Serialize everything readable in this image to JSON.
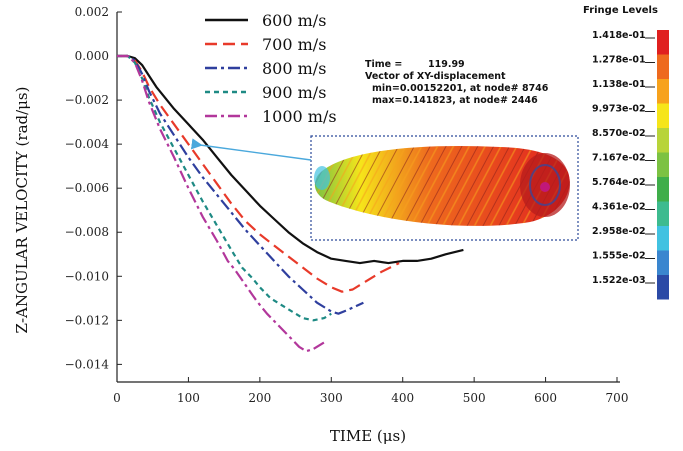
{
  "chart_data": {
    "type": "line",
    "xlabel": "TIME (μs)",
    "ylabel": "Z-ANGULAR VELOCITY (rad/μs)",
    "xlim": [
      0,
      700
    ],
    "ylim": [
      -0.0148,
      0.002
    ],
    "x_ticks": [
      0,
      100,
      200,
      300,
      400,
      500,
      600,
      700
    ],
    "y_ticks": [
      0.002,
      0.0,
      -0.002,
      -0.004,
      -0.006,
      -0.008,
      -0.01,
      -0.012,
      -0.014
    ],
    "x_tick_labels": [
      "0",
      "100",
      "200",
      "300",
      "400",
      "500",
      "600",
      "700"
    ],
    "y_tick_labels": [
      "0.002",
      "0.000",
      "−0.002",
      "−0.004",
      "−0.006",
      "−0.008",
      "−0.010",
      "−0.012",
      "−0.014"
    ],
    "grid": false,
    "legend_position": "top-left",
    "series": [
      {
        "name": "600 m/s",
        "color": "#111111",
        "dash": "solid",
        "points": [
          [
            0,
            0
          ],
          [
            15,
            0
          ],
          [
            25,
            -0.0001
          ],
          [
            35,
            -0.0004
          ],
          [
            45,
            -0.0009
          ],
          [
            55,
            -0.0014
          ],
          [
            65,
            -0.0018
          ],
          [
            80,
            -0.0024
          ],
          [
            100,
            -0.0031
          ],
          [
            120,
            -0.0038
          ],
          [
            140,
            -0.0046
          ],
          [
            160,
            -0.0054
          ],
          [
            180,
            -0.0061
          ],
          [
            200,
            -0.0068
          ],
          [
            220,
            -0.0074
          ],
          [
            240,
            -0.008
          ],
          [
            260,
            -0.0085
          ],
          [
            280,
            -0.0089
          ],
          [
            300,
            -0.0092
          ],
          [
            320,
            -0.0093
          ],
          [
            340,
            -0.0094
          ],
          [
            360,
            -0.0093
          ],
          [
            380,
            -0.0094
          ],
          [
            400,
            -0.0093
          ],
          [
            420,
            -0.0093
          ],
          [
            440,
            -0.0092
          ],
          [
            460,
            -0.009
          ],
          [
            485,
            -0.0088
          ]
        ]
      },
      {
        "name": "700 m/s",
        "color": "#e83a2a",
        "dash": "dashed",
        "points": [
          [
            0,
            0
          ],
          [
            15,
            0
          ],
          [
            25,
            -0.0002
          ],
          [
            35,
            -0.0007
          ],
          [
            45,
            -0.0014
          ],
          [
            60,
            -0.0022
          ],
          [
            80,
            -0.0031
          ],
          [
            100,
            -0.004
          ],
          [
            120,
            -0.0049
          ],
          [
            140,
            -0.0058
          ],
          [
            160,
            -0.0067
          ],
          [
            180,
            -0.0075
          ],
          [
            200,
            -0.0081
          ],
          [
            220,
            -0.0086
          ],
          [
            240,
            -0.0091
          ],
          [
            260,
            -0.0096
          ],
          [
            280,
            -0.0101
          ],
          [
            300,
            -0.0105
          ],
          [
            315,
            -0.0107
          ],
          [
            330,
            -0.0106
          ],
          [
            350,
            -0.0102
          ],
          [
            370,
            -0.0098
          ],
          [
            395,
            -0.0094
          ]
        ]
      },
      {
        "name": "800 m/s",
        "color": "#2f3f9e",
        "dash": "dashdot",
        "points": [
          [
            0,
            0
          ],
          [
            15,
            0
          ],
          [
            25,
            -0.0002
          ],
          [
            35,
            -0.0008
          ],
          [
            45,
            -0.0016
          ],
          [
            60,
            -0.0026
          ],
          [
            80,
            -0.0036
          ],
          [
            100,
            -0.0046
          ],
          [
            120,
            -0.0055
          ],
          [
            140,
            -0.0063
          ],
          [
            160,
            -0.0071
          ],
          [
            180,
            -0.0079
          ],
          [
            200,
            -0.0086
          ],
          [
            220,
            -0.0093
          ],
          [
            240,
            -0.01
          ],
          [
            260,
            -0.0106
          ],
          [
            280,
            -0.0112
          ],
          [
            300,
            -0.0116
          ],
          [
            310,
            -0.0117
          ],
          [
            325,
            -0.0115
          ],
          [
            345,
            -0.0112
          ]
        ]
      },
      {
        "name": "900 m/s",
        "color": "#1e8a84",
        "dash": "dotted",
        "points": [
          [
            0,
            0
          ],
          [
            15,
            0
          ],
          [
            25,
            -0.0003
          ],
          [
            35,
            -0.001
          ],
          [
            45,
            -0.0019
          ],
          [
            60,
            -0.003
          ],
          [
            80,
            -0.0042
          ],
          [
            100,
            -0.0054
          ],
          [
            120,
            -0.0066
          ],
          [
            140,
            -0.0077
          ],
          [
            160,
            -0.0088
          ],
          [
            175,
            -0.0096
          ],
          [
            190,
            -0.0101
          ],
          [
            200,
            -0.0105
          ],
          [
            215,
            -0.011
          ],
          [
            230,
            -0.0113
          ],
          [
            245,
            -0.0116
          ],
          [
            260,
            -0.0119
          ],
          [
            275,
            -0.012
          ],
          [
            290,
            -0.0119
          ],
          [
            300,
            -0.0117
          ]
        ]
      },
      {
        "name": "1000 m/s",
        "color": "#b2379b",
        "dash": "dashdot",
        "points": [
          [
            0,
            0
          ],
          [
            15,
            0
          ],
          [
            25,
            -0.0003
          ],
          [
            35,
            -0.0011
          ],
          [
            45,
            -0.0021
          ],
          [
            60,
            -0.0033
          ],
          [
            80,
            -0.0046
          ],
          [
            100,
            -0.006
          ],
          [
            120,
            -0.0073
          ],
          [
            140,
            -0.0084
          ],
          [
            155,
            -0.0093
          ],
          [
            165,
            -0.0097
          ],
          [
            180,
            -0.0104
          ],
          [
            195,
            -0.0111
          ],
          [
            210,
            -0.0117
          ],
          [
            225,
            -0.0122
          ],
          [
            240,
            -0.0127
          ],
          [
            255,
            -0.0132
          ],
          [
            265,
            -0.0134
          ],
          [
            275,
            -0.0133
          ],
          [
            290,
            -0.013
          ]
        ]
      }
    ]
  },
  "inset": {
    "time_label": "Time =",
    "time_value": "119.99",
    "vector_label": "Vector of XY-displacement",
    "min_text": "min=0.00152201, at node# 8746",
    "max_text": "max=0.141823, at node# 2446"
  },
  "fringe": {
    "title": "Fringe Levels",
    "levels": [
      "1.418e-01",
      "1.278e-01",
      "1.138e-01",
      "9.973e-02",
      "8.570e-02",
      "7.167e-02",
      "5.764e-02",
      "4.361e-02",
      "2.958e-02",
      "1.555e-02",
      "1.522e-03"
    ],
    "colors": [
      "#e0201f",
      "#ee6a1e",
      "#f7a21c",
      "#f6e51a",
      "#b8d43a",
      "#7cc242",
      "#3fae4a",
      "#3dbb8f",
      "#41c2e1",
      "#3a86cf",
      "#2b4aa6"
    ]
  }
}
